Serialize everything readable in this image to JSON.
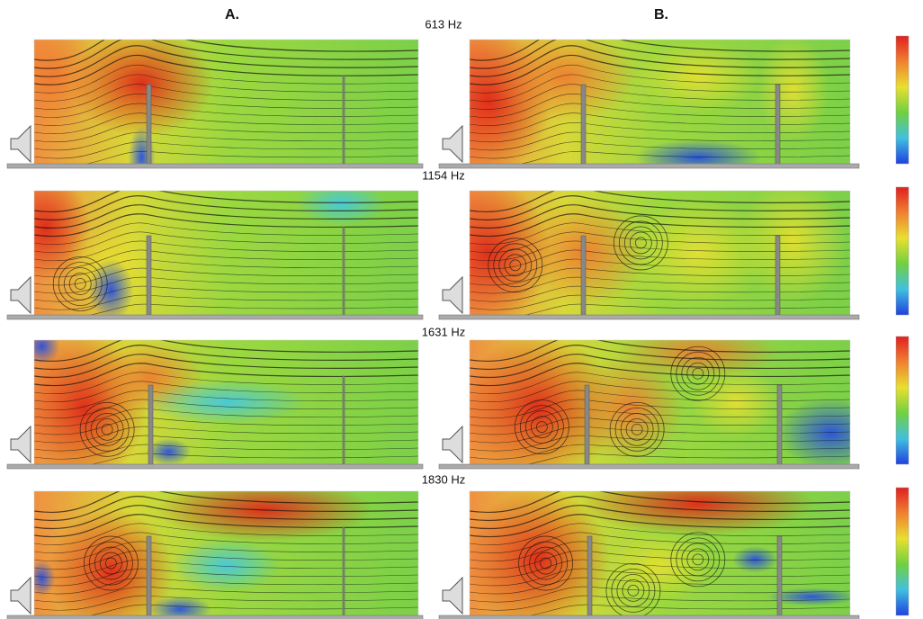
{
  "header": {
    "panel_a": "A.",
    "panel_b": "B."
  },
  "rows": [
    {
      "label": "613 Hz"
    },
    {
      "label": "1154 Hz"
    },
    {
      "label": "1631 Hz"
    },
    {
      "label": "1830 Hz"
    }
  ]
}
